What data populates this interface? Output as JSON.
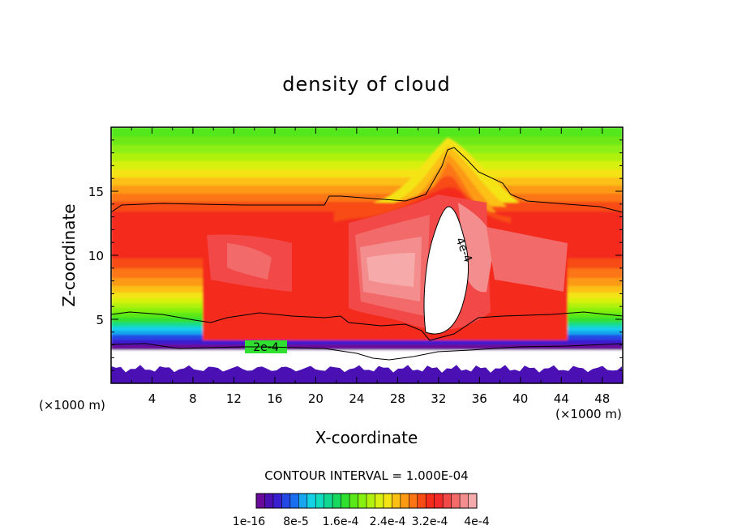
{
  "chart_data": {
    "type": "heatmap",
    "title": "density of cloud",
    "xlabel": "X-coordinate",
    "ylabel": "Z-coordinate",
    "x_unit": "(×1000 m)",
    "x_unit_right": "(×1000 m)",
    "xlim": [
      0,
      50
    ],
    "ylim": [
      0,
      20
    ],
    "x_ticks": [
      4,
      8,
      12,
      16,
      20,
      24,
      28,
      32,
      36,
      40,
      44,
      48
    ],
    "x_tick_labels": [
      "4",
      "8",
      "12",
      "16",
      "20",
      "24",
      "28",
      "32",
      "36",
      "40",
      "44",
      "48"
    ],
    "y_ticks": [
      5,
      10,
      15
    ],
    "y_tick_labels": [
      "5",
      "10",
      "15"
    ],
    "contour_interval_text": "CONTOUR INTERVAL = 1.000E-04",
    "contour_labels": [
      "2e-4",
      "4e-4"
    ],
    "colorbar": {
      "colors": [
        "#6a0a9a",
        "#4b10b4",
        "#3a1fd0",
        "#2448e6",
        "#1a6ef0",
        "#18a6ee",
        "#15d1e6",
        "#12dcc0",
        "#10d890",
        "#18d860",
        "#30e030",
        "#5ae818",
        "#86f010",
        "#b2f010",
        "#daf010",
        "#f4e414",
        "#fcc014",
        "#fc9a14",
        "#fc7414",
        "#f84c14",
        "#f42c1a",
        "#f42a2a",
        "#f24848",
        "#f26a6a",
        "#f48e8e",
        "#f6aaaa"
      ],
      "labels": [
        "1e-16",
        "8e-5",
        "1.6e-4",
        "2.4e-4",
        "3.2e-4",
        "4e-4"
      ]
    }
  }
}
